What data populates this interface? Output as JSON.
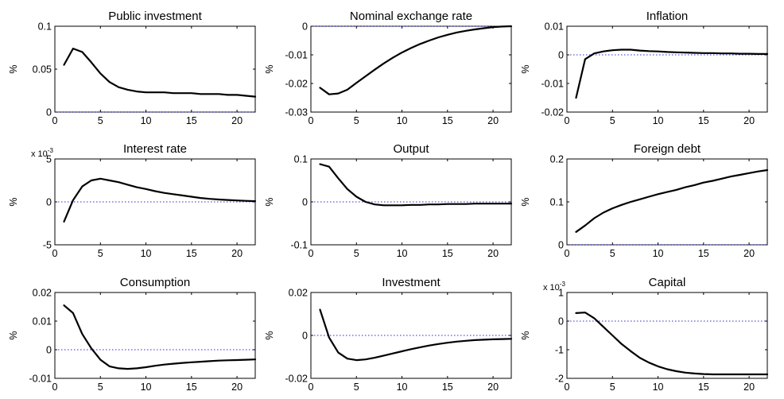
{
  "chart_data": [
    {
      "type": "line",
      "title": "Public investment",
      "ylabel": "%",
      "xlim": [
        0,
        22
      ],
      "ylim": [
        0,
        0.1
      ],
      "xticks": [
        0,
        5,
        10,
        15,
        20
      ],
      "yticks": [
        0,
        0.05,
        0.1
      ],
      "ytick_labels": [
        "0",
        "0.05",
        "0.1"
      ],
      "y_exponent": "",
      "zero_line": true,
      "x": [
        1,
        2,
        3,
        4,
        5,
        6,
        7,
        8,
        9,
        10,
        11,
        12,
        13,
        14,
        15,
        16,
        17,
        18,
        19,
        20,
        21,
        22
      ],
      "values": [
        0.055,
        0.074,
        0.07,
        0.058,
        0.045,
        0.035,
        0.029,
        0.026,
        0.024,
        0.023,
        0.023,
        0.023,
        0.022,
        0.022,
        0.022,
        0.021,
        0.021,
        0.021,
        0.02,
        0.02,
        0.019,
        0.018
      ]
    },
    {
      "type": "line",
      "title": "Nominal exchange rate",
      "ylabel": "%",
      "xlim": [
        0,
        22
      ],
      "ylim": [
        -0.03,
        0
      ],
      "xticks": [
        0,
        5,
        10,
        15,
        20
      ],
      "yticks": [
        -0.03,
        -0.02,
        -0.01,
        0
      ],
      "ytick_labels": [
        "-0.03",
        "-0.02",
        "-0.01",
        "0"
      ],
      "y_exponent": "",
      "zero_line": true,
      "x": [
        1,
        2,
        3,
        4,
        5,
        6,
        7,
        8,
        9,
        10,
        11,
        12,
        13,
        14,
        15,
        16,
        17,
        18,
        19,
        20,
        21,
        22
      ],
      "values": [
        -0.0215,
        -0.0238,
        -0.0235,
        -0.0222,
        -0.0198,
        -0.0175,
        -0.0152,
        -0.013,
        -0.011,
        -0.0092,
        -0.0076,
        -0.0062,
        -0.005,
        -0.0039,
        -0.003,
        -0.0022,
        -0.0016,
        -0.0011,
        -0.0007,
        -0.0003,
        -0.0001,
        0
      ]
    },
    {
      "type": "line",
      "title": "Inflation",
      "ylabel": "%",
      "xlim": [
        0,
        22
      ],
      "ylim": [
        -0.02,
        0.01
      ],
      "xticks": [
        0,
        5,
        10,
        15,
        20
      ],
      "yticks": [
        -0.02,
        -0.01,
        0,
        0.01
      ],
      "ytick_labels": [
        "-0.02",
        "-0.01",
        "0",
        "0.01"
      ],
      "y_exponent": "",
      "zero_line": true,
      "x": [
        1,
        2,
        3,
        4,
        5,
        6,
        7,
        8,
        9,
        10,
        11,
        12,
        13,
        14,
        15,
        16,
        17,
        18,
        19,
        20,
        21,
        22
      ],
      "values": [
        -0.015,
        -0.0015,
        0.0005,
        0.0012,
        0.0016,
        0.0018,
        0.0018,
        0.0015,
        0.0013,
        0.0012,
        0.001,
        0.0009,
        0.0008,
        0.0007,
        0.0006,
        0.0006,
        0.0005,
        0.0005,
        0.0004,
        0.0004,
        0.0003,
        0.0003
      ]
    },
    {
      "type": "line",
      "title": "Interest rate",
      "ylabel": "%",
      "xlim": [
        0,
        22
      ],
      "ylim": [
        -5,
        5
      ],
      "xticks": [
        0,
        5,
        10,
        15,
        20
      ],
      "yticks": [
        -5,
        0,
        5
      ],
      "ytick_labels": [
        "-5",
        "0",
        "5"
      ],
      "y_exponent": "-3",
      "zero_line": true,
      "x": [
        1,
        2,
        3,
        4,
        5,
        6,
        7,
        8,
        9,
        10,
        11,
        12,
        13,
        14,
        15,
        16,
        17,
        18,
        19,
        20,
        21,
        22
      ],
      "values": [
        -2.3,
        0.2,
        1.8,
        2.5,
        2.7,
        2.5,
        2.3,
        2.0,
        1.7,
        1.5,
        1.25,
        1.05,
        0.9,
        0.75,
        0.6,
        0.45,
        0.35,
        0.28,
        0.22,
        0.17,
        0.12,
        0.08
      ]
    },
    {
      "type": "line",
      "title": "Output",
      "ylabel": "%",
      "xlim": [
        0,
        22
      ],
      "ylim": [
        -0.1,
        0.1
      ],
      "xticks": [
        0,
        5,
        10,
        15,
        20
      ],
      "yticks": [
        -0.1,
        0,
        0.1
      ],
      "ytick_labels": [
        "-0.1",
        "0",
        "0.1"
      ],
      "y_exponent": "",
      "zero_line": true,
      "x": [
        1,
        2,
        3,
        4,
        5,
        6,
        7,
        8,
        9,
        10,
        11,
        12,
        13,
        14,
        15,
        16,
        17,
        18,
        19,
        20,
        21,
        22
      ],
      "values": [
        0.088,
        0.082,
        0.055,
        0.03,
        0.012,
        0.0,
        -0.006,
        -0.008,
        -0.008,
        -0.008,
        -0.007,
        -0.007,
        -0.006,
        -0.006,
        -0.005,
        -0.005,
        -0.005,
        -0.004,
        -0.004,
        -0.004,
        -0.004,
        -0.004
      ]
    },
    {
      "type": "line",
      "title": "Foreign debt",
      "ylabel": "%",
      "xlim": [
        0,
        22
      ],
      "ylim": [
        0,
        0.2
      ],
      "xticks": [
        0,
        5,
        10,
        15,
        20
      ],
      "yticks": [
        0,
        0.1,
        0.2
      ],
      "ytick_labels": [
        "0",
        "0.1",
        "0.2"
      ],
      "y_exponent": "",
      "zero_line": true,
      "x": [
        1,
        2,
        3,
        4,
        5,
        6,
        7,
        8,
        9,
        10,
        11,
        12,
        13,
        14,
        15,
        16,
        17,
        18,
        19,
        20,
        21,
        22
      ],
      "values": [
        0.03,
        0.045,
        0.062,
        0.075,
        0.085,
        0.093,
        0.1,
        0.106,
        0.112,
        0.118,
        0.123,
        0.128,
        0.134,
        0.139,
        0.145,
        0.149,
        0.154,
        0.159,
        0.163,
        0.167,
        0.171,
        0.174
      ]
    },
    {
      "type": "line",
      "title": "Consumption",
      "ylabel": "%",
      "xlim": [
        0,
        22
      ],
      "ylim": [
        -0.01,
        0.02
      ],
      "xticks": [
        0,
        5,
        10,
        15,
        20
      ],
      "yticks": [
        -0.01,
        0,
        0.01,
        0.02
      ],
      "ytick_labels": [
        "-0.01",
        "0",
        "0.01",
        "0.02"
      ],
      "y_exponent": "",
      "zero_line": true,
      "x": [
        1,
        2,
        3,
        4,
        5,
        6,
        7,
        8,
        9,
        10,
        11,
        12,
        13,
        14,
        15,
        16,
        17,
        18,
        19,
        20,
        21,
        22
      ],
      "values": [
        0.0155,
        0.0128,
        0.0055,
        0.0005,
        -0.0035,
        -0.0058,
        -0.0065,
        -0.0067,
        -0.0065,
        -0.0061,
        -0.0056,
        -0.0052,
        -0.0049,
        -0.0046,
        -0.0044,
        -0.0042,
        -0.004,
        -0.0038,
        -0.0037,
        -0.0036,
        -0.0035,
        -0.0034
      ]
    },
    {
      "type": "line",
      "title": "Investment",
      "ylabel": "%",
      "xlim": [
        0,
        22
      ],
      "ylim": [
        -0.02,
        0.02
      ],
      "xticks": [
        0,
        5,
        10,
        15,
        20
      ],
      "yticks": [
        -0.02,
        0,
        0.02
      ],
      "ytick_labels": [
        "-0.02",
        "0",
        "0.02"
      ],
      "y_exponent": "",
      "zero_line": true,
      "x": [
        1,
        2,
        3,
        4,
        5,
        6,
        7,
        8,
        9,
        10,
        11,
        12,
        13,
        14,
        15,
        16,
        17,
        18,
        19,
        20,
        21,
        22
      ],
      "values": [
        0.012,
        -0.001,
        -0.008,
        -0.0108,
        -0.0115,
        -0.0112,
        -0.0104,
        -0.0094,
        -0.0084,
        -0.0074,
        -0.0064,
        -0.0055,
        -0.0047,
        -0.004,
        -0.0034,
        -0.0029,
        -0.0025,
        -0.0022,
        -0.002,
        -0.0018,
        -0.0017,
        -0.0016
      ]
    },
    {
      "type": "line",
      "title": "Capital",
      "ylabel": "%",
      "xlim": [
        0,
        22
      ],
      "ylim": [
        -2,
        1
      ],
      "xticks": [
        0,
        5,
        10,
        15,
        20
      ],
      "yticks": [
        -2,
        -1,
        0,
        1
      ],
      "ytick_labels": [
        "-2",
        "-1",
        "0",
        "1"
      ],
      "y_exponent": "-3",
      "zero_line": true,
      "x": [
        1,
        2,
        3,
        4,
        5,
        6,
        7,
        8,
        9,
        10,
        11,
        12,
        13,
        14,
        15,
        16,
        17,
        18,
        19,
        20,
        21,
        22
      ],
      "values": [
        0.28,
        0.3,
        0.1,
        -0.2,
        -0.5,
        -0.8,
        -1.05,
        -1.28,
        -1.45,
        -1.58,
        -1.68,
        -1.75,
        -1.8,
        -1.83,
        -1.85,
        -1.86,
        -1.86,
        -1.86,
        -1.86,
        -1.86,
        -1.86,
        -1.86
      ]
    }
  ]
}
